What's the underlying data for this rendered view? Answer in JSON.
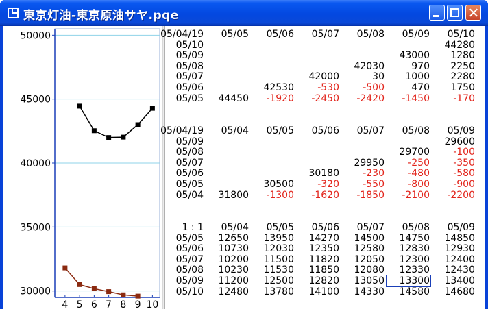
{
  "window": {
    "title": "東京灯油-東京原油サヤ.pqe",
    "app_icon": "chart-window-icon",
    "controls": [
      "minimize",
      "maximize",
      "close"
    ]
  },
  "chart": {
    "y_ticks": [
      "50000",
      "45000",
      "40000",
      "35000",
      "30000"
    ],
    "x_ticks": [
      "4",
      "5",
      "6",
      "7",
      "8",
      "9",
      "10"
    ]
  },
  "chart_data": {
    "type": "line",
    "x": [
      4,
      5,
      6,
      7,
      8,
      9,
      10
    ],
    "ylim": [
      29500,
      50500
    ],
    "grid": true,
    "series": [
      {
        "color": "#000000",
        "points": [
          [
            5,
            44450
          ],
          [
            6,
            42530
          ],
          [
            7,
            42000
          ],
          [
            8,
            42030
          ],
          [
            9,
            43000
          ],
          [
            10,
            44280
          ]
        ]
      },
      {
        "color": "#8b2a10",
        "points": [
          [
            4,
            31800
          ],
          [
            5,
            30500
          ],
          [
            6,
            30180
          ],
          [
            7,
            29950
          ],
          [
            8,
            29700
          ],
          [
            9,
            29600
          ]
        ]
      }
    ]
  },
  "tables": [
    {
      "header": [
        "05/04/19",
        "05/05",
        "05/06",
        "05/07",
        "05/08",
        "05/09",
        "05/10"
      ],
      "rows": [
        [
          "05/10",
          "",
          "",
          "",
          "",
          "",
          "44280"
        ],
        [
          "05/09",
          "",
          "",
          "",
          "",
          "43000",
          "1280"
        ],
        [
          "05/08",
          "",
          "",
          "",
          "42030",
          "970",
          "2250"
        ],
        [
          "05/07",
          "",
          "",
          "42000",
          "30",
          "1000",
          "2280"
        ],
        [
          "05/06",
          "",
          "42530",
          "-530",
          "-500",
          "470",
          "1750"
        ],
        [
          "05/05",
          "44450",
          "-1920",
          "-2450",
          "-2420",
          "-1450",
          "-170"
        ]
      ]
    },
    {
      "header": [
        "05/04/19",
        "05/04",
        "05/05",
        "05/06",
        "05/07",
        "05/08",
        "05/09"
      ],
      "rows": [
        [
          "05/09",
          "",
          "",
          "",
          "",
          "",
          "29600"
        ],
        [
          "05/08",
          "",
          "",
          "",
          "",
          "29700",
          "-100"
        ],
        [
          "05/07",
          "",
          "",
          "",
          "29950",
          "-250",
          "-350"
        ],
        [
          "05/06",
          "",
          "",
          "30180",
          "-230",
          "-480",
          "-580"
        ],
        [
          "05/05",
          "",
          "30500",
          "-320",
          "-550",
          "-800",
          "-900"
        ],
        [
          "05/04",
          "31800",
          "-1300",
          "-1620",
          "-1850",
          "-2100",
          "-2200"
        ]
      ]
    },
    {
      "header": [
        "1 : 1",
        "05/04",
        "05/05",
        "05/06",
        "05/07",
        "05/08",
        "05/09"
      ],
      "rows": [
        [
          "05/05",
          "12650",
          "13950",
          "14270",
          "14500",
          "14750",
          "14850"
        ],
        [
          "05/06",
          "10730",
          "12030",
          "12350",
          "12580",
          "12830",
          "12930"
        ],
        [
          "05/07",
          "10200",
          "11500",
          "11820",
          "12050",
          "12300",
          "12400"
        ],
        [
          "05/08",
          "10230",
          "11530",
          "11850",
          "12080",
          "12330",
          "12430"
        ],
        [
          "05/09",
          "11200",
          "12500",
          "12820",
          "13050",
          "13300",
          "13400"
        ],
        [
          "05/10",
          "12480",
          "13780",
          "14100",
          "14330",
          "14580",
          "14680"
        ]
      ]
    }
  ],
  "selection": {
    "table": 2,
    "row": 4,
    "col": 5,
    "value": "13300"
  }
}
